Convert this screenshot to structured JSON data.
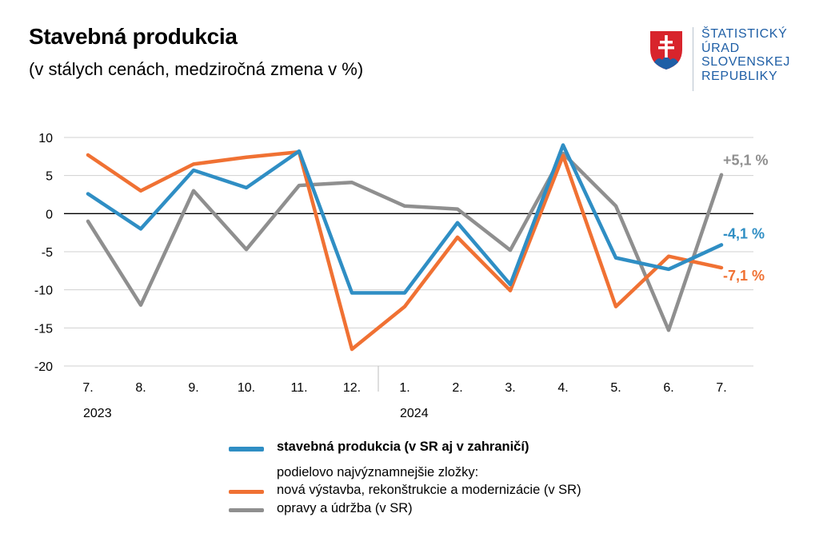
{
  "header": {
    "title": "Stavebná produkcia",
    "subtitle": "(v stálych cenách, medziročná zmena v %)"
  },
  "logo": {
    "lines": [
      "ŠTATISTICKÝ",
      "ÚRAD",
      "SLOVENSKEJ",
      "REPUBLIKY"
    ],
    "colors": {
      "text": "#1f5fa6",
      "shield_red": "#d8242c",
      "shield_blue": "#1f5fa6"
    }
  },
  "legend": {
    "main_label": "stavebná produkcia (v SR aj v zahraničí)",
    "components_heading": "podielovo najvýznamnejšie zložky:",
    "items": [
      {
        "label": "nová výstavba, rekonštrukcie a modernizácie (v SR)",
        "color": "#f07133"
      },
      {
        "label": "opravy a údržba (v SR)",
        "color": "#8f8f8f"
      }
    ]
  },
  "chart_data": {
    "type": "line",
    "categories": [
      "7.",
      "8.",
      "9.",
      "10.",
      "11.",
      "12.",
      "1.",
      "2.",
      "3.",
      "4.",
      "5.",
      "6.",
      "7."
    ],
    "year_labels": [
      {
        "label": "2023",
        "index": 0
      },
      {
        "label": "2024",
        "index": 6
      }
    ],
    "ylim": [
      -20,
      10
    ],
    "yticks": [
      10,
      5,
      0,
      -5,
      -10,
      -15,
      -20
    ],
    "grid": true,
    "series": [
      {
        "name": "stavebná produkcia (v SR aj v zahraničí)",
        "color": "#2f8ec4",
        "values": [
          2.6,
          -2.0,
          5.7,
          3.4,
          8.2,
          -10.4,
          -10.4,
          -1.2,
          -9.3,
          9.0,
          -5.8,
          -7.3,
          -4.1
        ],
        "end_label": "-4,1 %"
      },
      {
        "name": "nová výstavba, rekonštrukcie a modernizácie (v SR)",
        "color": "#f07133",
        "values": [
          7.7,
          3.0,
          6.5,
          7.4,
          8.1,
          -17.8,
          -12.2,
          -3.1,
          -10.1,
          7.6,
          -12.2,
          -5.6,
          -7.1
        ],
        "end_label": "-7,1 %"
      },
      {
        "name": "opravy a údržba (v SR)",
        "color": "#8f8f8f",
        "values": [
          -1.0,
          -12.0,
          3.0,
          -4.7,
          3.7,
          4.1,
          1.0,
          0.6,
          -4.8,
          7.9,
          1.0,
          -15.3,
          5.1
        ],
        "end_label": "+5,1 %"
      }
    ]
  }
}
